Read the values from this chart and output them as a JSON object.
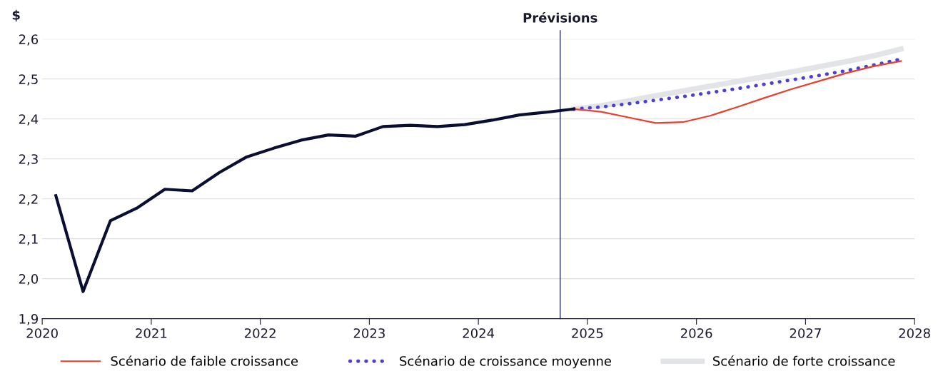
{
  "chart_data": {
    "type": "line",
    "ylabel": "$",
    "xlim": [
      2020,
      2028
    ],
    "xticks": [
      2020,
      2021,
      2022,
      2023,
      2024,
      2025,
      2026,
      2027,
      2028
    ],
    "ylim": [
      1.9,
      2.6
    ],
    "yticks": [
      {
        "value": 1.9,
        "label": "1,9"
      },
      {
        "value": 2.0,
        "label": "2,0"
      },
      {
        "value": 2.1,
        "label": "2,1"
      },
      {
        "value": 2.2,
        "label": "2,2"
      },
      {
        "value": 2.3,
        "label": "2,3"
      },
      {
        "value": 2.4,
        "label": "2,4"
      },
      {
        "value": 2.5,
        "label": "2,5"
      },
      {
        "value": 2.6,
        "label": "2,6"
      }
    ],
    "grid": "y",
    "legend": "bottom",
    "ref_lines": [
      {
        "axis": "x",
        "value": 2024.75,
        "label": "Prévisions",
        "color": "#2b2d5c"
      }
    ],
    "series": [
      {
        "color": "#e2e4e8",
        "name": "Scénario de forte croissance",
        "line_style": "solid",
        "x": [
          2024.875,
          2025.125,
          2025.375,
          2025.625,
          2025.875,
          2026.125,
          2026.375,
          2026.625,
          2026.875,
          2027.125,
          2027.375,
          2027.625,
          2027.875
        ],
        "values": [
          2.425,
          2.433,
          2.445,
          2.458,
          2.47,
          2.482,
          2.494,
          2.506,
          2.518,
          2.531,
          2.544,
          2.558,
          2.575
        ]
      },
      {
        "color": "#4b3fd6",
        "name": "Scénario de croissance moyenne",
        "line_style": "dotted",
        "x": [
          2024.875,
          2025.125,
          2025.375,
          2025.625,
          2025.875,
          2026.125,
          2026.375,
          2026.625,
          2026.875,
          2027.125,
          2027.375,
          2027.625,
          2027.875
        ],
        "values": [
          2.425,
          2.43,
          2.438,
          2.447,
          2.456,
          2.466,
          2.476,
          2.487,
          2.498,
          2.509,
          2.521,
          2.535,
          2.55
        ]
      },
      {
        "color": "#e8402f",
        "name": "Scénario de faible croissance",
        "line_style": "solid",
        "x": [
          2024.875,
          2025.125,
          2025.375,
          2025.625,
          2025.875,
          2026.125,
          2026.375,
          2026.625,
          2026.875,
          2027.125,
          2027.375,
          2027.625,
          2027.875
        ],
        "values": [
          2.425,
          2.418,
          2.404,
          2.39,
          2.392,
          2.408,
          2.43,
          2.453,
          2.475,
          2.495,
          2.515,
          2.532,
          2.545
        ]
      },
      {
        "color": "#0a0e33",
        "line_style": "solid",
        "x": [
          2020.125,
          2020.375,
          2020.625,
          2020.875,
          2021.125,
          2021.375,
          2021.625,
          2021.875,
          2022.125,
          2022.375,
          2022.625,
          2022.875,
          2023.125,
          2023.375,
          2023.625,
          2023.875,
          2024.125,
          2024.375,
          2024.625,
          2024.875
        ],
        "values": [
          2.208,
          1.968,
          2.145,
          2.178,
          2.224,
          2.22,
          2.266,
          2.305,
          2.327,
          2.347,
          2.36,
          2.357,
          2.381,
          2.384,
          2.381,
          2.386,
          2.397,
          2.41,
          2.417,
          2.425
        ]
      }
    ]
  }
}
